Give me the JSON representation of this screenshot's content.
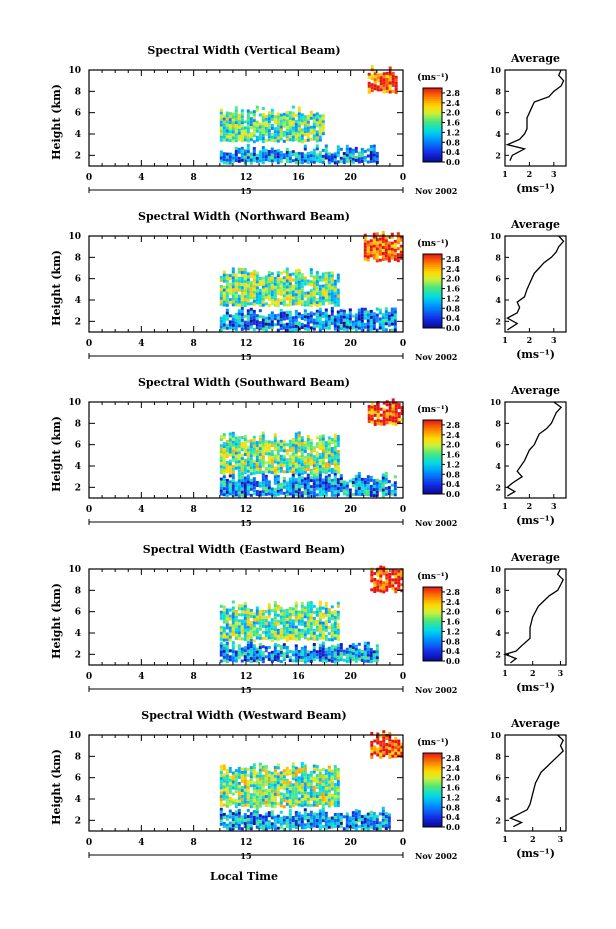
{
  "figure": {
    "xlabel": "Local Time",
    "date_label": "Nov 2002",
    "day_label": "15",
    "ylabel": "Height (km)",
    "unit_label": "(ms⁻¹)",
    "avg_title": "Average",
    "avg_xlabel": "(ms⁻¹)",
    "colorbar_ticks": [
      "0.0",
      "0.4",
      "0.8",
      "1.2",
      "1.6",
      "2.0",
      "2.4",
      "2.8"
    ]
  },
  "chart_data": [
    {
      "type": "heatmap",
      "title": "Spectral Width (Vertical Beam)",
      "xlabel": "Local Time",
      "ylabel": "Height (km)",
      "xticks": [
        "0",
        "4",
        "8",
        "12",
        "16",
        "20",
        "0"
      ],
      "yticks": [
        "2",
        "4",
        "6",
        "8",
        "10"
      ],
      "xlim": [
        0,
        24
      ],
      "ylim": [
        1,
        10
      ],
      "colorbar": {
        "label": "(ms⁻¹)",
        "ticks": [
          0.0,
          0.4,
          0.8,
          1.2,
          1.6,
          2.0,
          2.4,
          2.8
        ]
      },
      "regions": [
        {
          "t": [
            10,
            22
          ],
          "h": [
            1.4,
            2.6
          ],
          "level": 0.9
        },
        {
          "t": [
            10,
            18
          ],
          "h": [
            3.4,
            6.2
          ],
          "level": 1.6
        },
        {
          "t": [
            21.3,
            23.5
          ],
          "h": [
            8.0,
            10.0
          ],
          "level": 2.9
        }
      ],
      "average": {
        "xlim": [
          1,
          3.5
        ],
        "xticks": [
          1,
          2,
          3
        ],
        "yticks": [
          2,
          4,
          6,
          8,
          10
        ],
        "profile": [
          [
            1.2,
            1.5
          ],
          [
            1.3,
            2.0
          ],
          [
            1.8,
            2.6
          ],
          [
            1.1,
            3.0
          ],
          [
            1.6,
            3.5
          ],
          [
            1.8,
            4.0
          ],
          [
            1.9,
            4.5
          ],
          [
            1.9,
            5.0
          ],
          [
            1.9,
            5.5
          ],
          [
            2.0,
            6.0
          ],
          [
            2.1,
            6.5
          ],
          [
            2.2,
            7.0
          ],
          [
            2.8,
            7.5
          ],
          [
            3.0,
            8.0
          ],
          [
            3.3,
            8.5
          ],
          [
            3.4,
            9.0
          ],
          [
            3.2,
            9.5
          ],
          [
            3.3,
            10.0
          ]
        ]
      }
    },
    {
      "type": "heatmap",
      "title": "Spectral Width (Northward Beam)",
      "xlabel": "Local Time",
      "ylabel": "Height (km)",
      "xticks": [
        "0",
        "4",
        "8",
        "12",
        "16",
        "20",
        "0"
      ],
      "yticks": [
        "2",
        "4",
        "6",
        "8",
        "10"
      ],
      "xlim": [
        0,
        24
      ],
      "ylim": [
        1,
        10
      ],
      "colorbar": {
        "label": "(ms⁻¹)",
        "ticks": [
          0.0,
          0.4,
          0.8,
          1.2,
          1.6,
          2.0,
          2.4,
          2.8
        ]
      },
      "regions": [
        {
          "t": [
            10,
            23.5
          ],
          "h": [
            1.3,
            2.9
          ],
          "level": 0.8
        },
        {
          "t": [
            10,
            19
          ],
          "h": [
            3.6,
            6.6
          ],
          "level": 1.6
        },
        {
          "t": [
            21,
            23.8
          ],
          "h": [
            7.8,
            10.0
          ],
          "level": 2.9
        }
      ],
      "average": {
        "xlim": [
          1,
          3.5
        ],
        "xticks": [
          1,
          2,
          3
        ],
        "yticks": [
          2,
          4,
          6,
          8,
          10
        ],
        "profile": [
          [
            1.1,
            1.2
          ],
          [
            1.5,
            1.8
          ],
          [
            1.1,
            2.3
          ],
          [
            1.5,
            2.8
          ],
          [
            1.6,
            3.3
          ],
          [
            1.5,
            3.8
          ],
          [
            1.8,
            4.3
          ],
          [
            1.9,
            5.0
          ],
          [
            2.0,
            5.5
          ],
          [
            2.1,
            6.0
          ],
          [
            2.2,
            6.5
          ],
          [
            2.4,
            7.0
          ],
          [
            2.6,
            7.5
          ],
          [
            2.9,
            8.0
          ],
          [
            3.1,
            8.5
          ],
          [
            3.2,
            9.0
          ],
          [
            3.4,
            9.5
          ],
          [
            3.2,
            10.0
          ]
        ]
      }
    },
    {
      "type": "heatmap",
      "title": "Spectral Width (Southward Beam)",
      "xlabel": "Local Time",
      "ylabel": "Height (km)",
      "xticks": [
        "0",
        "4",
        "8",
        "12",
        "16",
        "20",
        "0"
      ],
      "yticks": [
        "2",
        "4",
        "6",
        "8",
        "10"
      ],
      "xlim": [
        0,
        24
      ],
      "ylim": [
        1,
        10
      ],
      "colorbar": {
        "label": "(ms⁻¹)",
        "ticks": [
          0.0,
          0.4,
          0.8,
          1.2,
          1.6,
          2.0,
          2.4,
          2.8
        ]
      },
      "regions": [
        {
          "t": [
            10,
            23.5
          ],
          "h": [
            1.3,
            3.0
          ],
          "level": 0.9
        },
        {
          "t": [
            10,
            19
          ],
          "h": [
            3.4,
            6.8
          ],
          "level": 1.7
        },
        {
          "t": [
            21.3,
            24.0
          ],
          "h": [
            8.0,
            10.0
          ],
          "level": 2.9
        }
      ],
      "average": {
        "xlim": [
          1,
          3.5
        ],
        "xticks": [
          1,
          2,
          3
        ],
        "yticks": [
          2,
          4,
          6,
          8,
          10
        ],
        "profile": [
          [
            1.1,
            1.2
          ],
          [
            1.4,
            1.6
          ],
          [
            1.1,
            2.0
          ],
          [
            1.3,
            2.4
          ],
          [
            1.7,
            3.0
          ],
          [
            1.5,
            3.5
          ],
          [
            1.8,
            4.5
          ],
          [
            2.0,
            5.5
          ],
          [
            2.2,
            6.0
          ],
          [
            2.3,
            6.5
          ],
          [
            2.4,
            7.0
          ],
          [
            2.7,
            7.5
          ],
          [
            2.9,
            8.0
          ],
          [
            3.0,
            8.5
          ],
          [
            3.1,
            9.0
          ],
          [
            3.3,
            9.5
          ],
          [
            3.0,
            10.0
          ]
        ]
      }
    },
    {
      "type": "heatmap",
      "title": "Spectral Width (Eastward Beam)",
      "xlabel": "Local Time",
      "ylabel": "Height (km)",
      "xticks": [
        "0",
        "4",
        "8",
        "12",
        "16",
        "20",
        "0"
      ],
      "yticks": [
        "2",
        "4",
        "6",
        "8",
        "10"
      ],
      "xlim": [
        0,
        24
      ],
      "ylim": [
        1,
        10
      ],
      "colorbar": {
        "label": "(ms⁻¹)",
        "ticks": [
          0.0,
          0.4,
          0.8,
          1.2,
          1.6,
          2.0,
          2.4,
          2.8
        ]
      },
      "regions": [
        {
          "t": [
            10,
            22
          ],
          "h": [
            1.4,
            2.8
          ],
          "level": 0.9
        },
        {
          "t": [
            10,
            19
          ],
          "h": [
            3.4,
            6.6
          ],
          "level": 1.6
        },
        {
          "t": [
            21.5,
            23.8
          ],
          "h": [
            8.0,
            10.0
          ],
          "level": 2.9
        }
      ],
      "average": {
        "xlim": [
          1,
          3.2
        ],
        "xticks": [
          1,
          2,
          3
        ],
        "yticks": [
          2,
          4,
          6,
          8,
          10
        ],
        "profile": [
          [
            1.2,
            1.2
          ],
          [
            1.4,
            1.6
          ],
          [
            1.0,
            2.0
          ],
          [
            1.4,
            2.3
          ],
          [
            1.6,
            2.8
          ],
          [
            1.9,
            3.5
          ],
          [
            1.9,
            4.5
          ],
          [
            2.0,
            5.5
          ],
          [
            2.1,
            6.0
          ],
          [
            2.2,
            6.5
          ],
          [
            2.4,
            7.0
          ],
          [
            2.6,
            7.5
          ],
          [
            2.9,
            8.0
          ],
          [
            3.0,
            8.5
          ],
          [
            3.1,
            9.0
          ],
          [
            2.9,
            9.5
          ],
          [
            3.0,
            10.0
          ]
        ]
      }
    },
    {
      "type": "heatmap",
      "title": "Spectral Width (Westward Beam)",
      "xlabel": "Local Time",
      "ylabel": "Height (km)",
      "xticks": [
        "0",
        "4",
        "8",
        "12",
        "16",
        "20",
        "0"
      ],
      "yticks": [
        "2",
        "4",
        "6",
        "8",
        "10"
      ],
      "xlim": [
        0,
        24
      ],
      "ylim": [
        1,
        10
      ],
      "colorbar": {
        "label": "(ms⁻¹)",
        "ticks": [
          0.0,
          0.4,
          0.8,
          1.2,
          1.6,
          2.0,
          2.4,
          2.8
        ]
      },
      "regions": [
        {
          "t": [
            10,
            23
          ],
          "h": [
            1.3,
            2.8
          ],
          "level": 0.9
        },
        {
          "t": [
            10,
            19
          ],
          "h": [
            3.4,
            7.0
          ],
          "level": 1.7
        },
        {
          "t": [
            21.5,
            24.0
          ],
          "h": [
            8.0,
            10.0
          ],
          "level": 2.9
        }
      ],
      "average": {
        "xlim": [
          1,
          3.2
        ],
        "xticks": [
          1,
          2,
          3
        ],
        "yticks": [
          2,
          4,
          6,
          8,
          10
        ],
        "profile": [
          [
            1.3,
            1.4
          ],
          [
            1.6,
            1.8
          ],
          [
            1.2,
            2.2
          ],
          [
            1.5,
            2.6
          ],
          [
            1.8,
            3.0
          ],
          [
            1.9,
            3.5
          ],
          [
            2.0,
            4.5
          ],
          [
            2.1,
            5.5
          ],
          [
            2.2,
            6.0
          ],
          [
            2.3,
            6.5
          ],
          [
            2.5,
            7.0
          ],
          [
            2.7,
            7.5
          ],
          [
            2.9,
            8.0
          ],
          [
            3.1,
            8.5
          ],
          [
            3.0,
            9.0
          ],
          [
            3.1,
            9.5
          ],
          [
            2.9,
            10.0
          ]
        ]
      }
    }
  ]
}
